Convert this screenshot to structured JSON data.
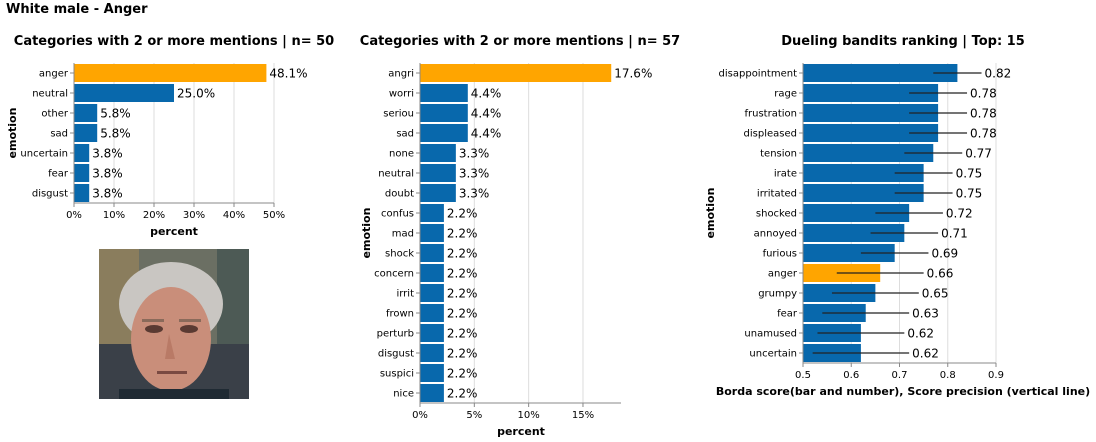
{
  "figure_title": "White male - Anger",
  "chart_data": [
    {
      "type": "bar",
      "orientation": "horizontal",
      "title": "Categories with 2 or more mentions | n= 50",
      "xlabel": "percent",
      "ylabel": "emotion",
      "xlim": [
        0,
        50
      ],
      "x_ticks": [
        "0%",
        "10%",
        "20%",
        "30%",
        "40%",
        "50%"
      ],
      "grid": true,
      "categories": [
        "anger",
        "neutral",
        "other",
        "sad",
        "uncertain",
        "fear",
        "disgust"
      ],
      "values": [
        48.1,
        25.0,
        5.8,
        5.8,
        3.8,
        3.8,
        3.8
      ],
      "labels": [
        "48.1%",
        "25.0%",
        "5.8%",
        "5.8%",
        "3.8%",
        "3.8%",
        "3.8%"
      ],
      "highlight_index": 0
    },
    {
      "type": "bar",
      "orientation": "horizontal",
      "title": "Categories with 2 or more mentions | n= 57",
      "xlabel": "percent",
      "ylabel": "emotion",
      "xlim": [
        0,
        18.5
      ],
      "x_ticks": [
        "0%",
        "5%",
        "10%",
        "15%"
      ],
      "grid": true,
      "categories": [
        "angri",
        "worri",
        "seriou",
        "sad",
        "none",
        "neutral",
        "doubt",
        "confus",
        "mad",
        "shock",
        "concern",
        "irrit",
        "frown",
        "perturb",
        "disgust",
        "suspici",
        "nice"
      ],
      "values": [
        17.6,
        4.4,
        4.4,
        4.4,
        3.3,
        3.3,
        3.3,
        2.2,
        2.2,
        2.2,
        2.2,
        2.2,
        2.2,
        2.2,
        2.2,
        2.2,
        2.2
      ],
      "labels": [
        "17.6%",
        "4.4%",
        "4.4%",
        "4.4%",
        "3.3%",
        "3.3%",
        "3.3%",
        "2.2%",
        "2.2%",
        "2.2%",
        "2.2%",
        "2.2%",
        "2.2%",
        "2.2%",
        "2.2%",
        "2.2%",
        "2.2%"
      ],
      "highlight_index": 0
    },
    {
      "type": "bar",
      "orientation": "horizontal",
      "title": "Dueling bandits ranking | Top: 15",
      "xlabel": "Borda score(bar and number), Score precision (vertical line)",
      "ylabel": "emotion",
      "xlim": [
        0.5,
        0.9
      ],
      "x_ticks": [
        "0.5",
        "0.6",
        "0.7",
        "0.8",
        "0.9"
      ],
      "grid": true,
      "categories": [
        "disappointment",
        "rage",
        "frustration",
        "displeased",
        "tension",
        "irate",
        "irritated",
        "shocked",
        "annoyed",
        "furious",
        "anger",
        "grumpy",
        "fear",
        "unamused",
        "uncertain"
      ],
      "values": [
        0.82,
        0.78,
        0.78,
        0.78,
        0.77,
        0.75,
        0.75,
        0.72,
        0.71,
        0.69,
        0.66,
        0.65,
        0.63,
        0.62,
        0.62
      ],
      "labels": [
        "0.82",
        "0.78",
        "0.78",
        "0.78",
        "0.77",
        "0.75",
        "0.75",
        "0.72",
        "0.71",
        "0.69",
        "0.66",
        "0.65",
        "0.63",
        "0.62",
        "0.62"
      ],
      "error_low": [
        0.77,
        0.72,
        0.72,
        0.72,
        0.71,
        0.69,
        0.69,
        0.65,
        0.64,
        0.62,
        0.57,
        0.56,
        0.54,
        0.53,
        0.52
      ],
      "error_high": [
        0.87,
        0.84,
        0.84,
        0.84,
        0.83,
        0.81,
        0.81,
        0.79,
        0.78,
        0.76,
        0.75,
        0.74,
        0.72,
        0.71,
        0.72
      ],
      "highlight_index": 10
    }
  ],
  "colors": {
    "bar": "#0868ac",
    "highlight": "#ffa500",
    "grid": "#dddddd",
    "axis": "#888888",
    "error": "#222222"
  },
  "photo": {
    "description_icon": "face-photo"
  }
}
